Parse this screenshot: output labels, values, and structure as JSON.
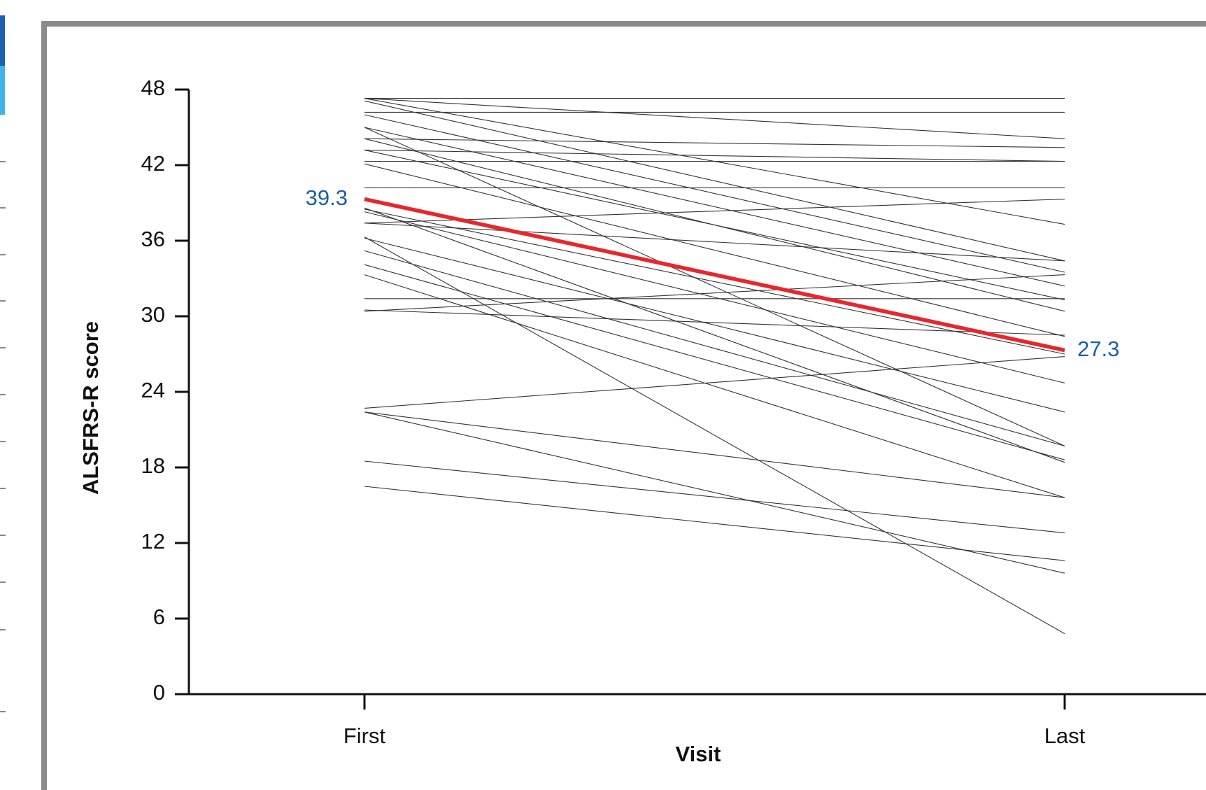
{
  "chart_data": {
    "type": "line",
    "x_label": "Visit",
    "y_label": "ALSFRS-R score",
    "categories": [
      "First",
      "Last"
    ],
    "ylim": [
      0,
      48
    ],
    "yticks": [
      0,
      6,
      12,
      18,
      24,
      30,
      36,
      42,
      48
    ],
    "series": [
      {
        "color": "#333333",
        "values": [
          47.3,
          47.3
        ]
      },
      {
        "color": "#333333",
        "values": [
          46.2,
          46.2
        ]
      },
      {
        "color": "#333333",
        "values": [
          47.3,
          44.1
        ]
      },
      {
        "color": "#333333",
        "values": [
          44.1,
          43.4
        ]
      },
      {
        "color": "#333333",
        "values": [
          43.2,
          42.3
        ]
      },
      {
        "color": "#333333",
        "values": [
          42.3,
          42.3
        ]
      },
      {
        "color": "#333333",
        "values": [
          40.2,
          40.2
        ]
      },
      {
        "color": "#333333",
        "values": [
          37.4,
          39.3
        ]
      },
      {
        "color": "#333333",
        "values": [
          47.3,
          37.3
        ]
      },
      {
        "color": "#333333",
        "values": [
          47.1,
          34.4
        ]
      },
      {
        "color": "#333333",
        "values": [
          37.4,
          34.4
        ]
      },
      {
        "color": "#333333",
        "values": [
          46.0,
          33.5
        ]
      },
      {
        "color": "#333333",
        "values": [
          31.4,
          31.4
        ]
      },
      {
        "color": "#333333",
        "values": [
          30.4,
          33.3
        ]
      },
      {
        "color": "#333333",
        "values": [
          30.5,
          28.5
        ]
      },
      {
        "color": "#333333",
        "values": [
          45.0,
          32.4
        ]
      },
      {
        "color": "#333333",
        "values": [
          44.1,
          30.4
        ]
      },
      {
        "color": "#333333",
        "values": [
          42.1,
          28.4
        ]
      },
      {
        "color": "#333333",
        "values": [
          43.2,
          31.3
        ]
      },
      {
        "color": "#333333",
        "values": [
          38.5,
          27.0
        ]
      },
      {
        "color": "#333333",
        "values": [
          38.3,
          24.7
        ]
      },
      {
        "color": "#333333",
        "values": [
          36.2,
          22.4
        ]
      },
      {
        "color": "#333333",
        "values": [
          35.2,
          19.7
        ]
      },
      {
        "color": "#333333",
        "values": [
          34.1,
          18.6
        ]
      },
      {
        "color": "#333333",
        "values": [
          33.3,
          15.6
        ]
      },
      {
        "color": "#333333",
        "values": [
          22.7,
          26.8
        ]
      },
      {
        "color": "#333333",
        "values": [
          22.4,
          15.6
        ]
      },
      {
        "color": "#333333",
        "values": [
          36.3,
          4.8
        ]
      },
      {
        "color": "#333333",
        "values": [
          18.5,
          12.8
        ]
      },
      {
        "color": "#333333",
        "values": [
          16.5,
          10.6
        ]
      },
      {
        "color": "#333333",
        "values": [
          45.0,
          19.7
        ]
      },
      {
        "color": "#333333",
        "values": [
          38.6,
          18.4
        ]
      },
      {
        "color": "#333333",
        "values": [
          22.4,
          9.6
        ]
      },
      {
        "color": "#e8262c",
        "values": [
          39.3,
          27.3
        ],
        "data_labels": true,
        "label_color": "#1a5ea8"
      }
    ]
  }
}
